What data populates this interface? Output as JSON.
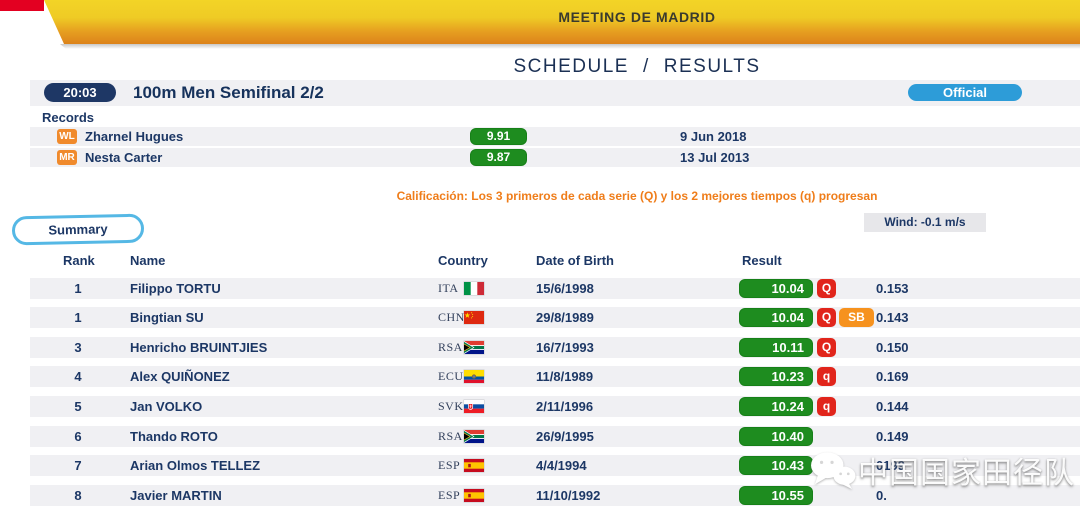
{
  "banner": {
    "title": "MEETING DE MADRID"
  },
  "nav": {
    "schedule": "SCHEDULE",
    "separator": "/",
    "results": "RESULTS"
  },
  "event": {
    "time": "20:03",
    "title": "100m Men Semifinal 2/2",
    "status": "Official"
  },
  "records": {
    "label": "Records",
    "rows": [
      {
        "badge": "WL",
        "name": "Zharnel Hugues",
        "mark": "9.91",
        "date": "9 Jun 2018"
      },
      {
        "badge": "MR",
        "name": "Nesta Carter",
        "mark": "9.87",
        "date": "13 Jul 2013"
      }
    ]
  },
  "qualification": "Calificación: Los 3 primeros de cada serie (Q) y los 2 mejores tiempos (q) progresan",
  "wind": "Wind: -0.1 m/s",
  "tab": "Summary",
  "results_table": {
    "columns": [
      "Rank",
      "Name",
      "Country",
      "Date of Birth",
      "Result"
    ],
    "rows": [
      {
        "rank": "1",
        "name": "Filippo TORTU",
        "country": "ITA",
        "flag": "ita",
        "dob": "15/6/1998",
        "result": "10.04",
        "qual": "Q",
        "note": "",
        "reaction": "0.153"
      },
      {
        "rank": "1",
        "name": "Bingtian SU",
        "country": "CHN",
        "flag": "chn",
        "dob": "29/8/1989",
        "result": "10.04",
        "qual": "Q",
        "note": "SB",
        "reaction": "0.143"
      },
      {
        "rank": "3",
        "name": "Henricho BRUINTJIES",
        "country": "RSA",
        "flag": "rsa",
        "dob": "16/7/1993",
        "result": "10.11",
        "qual": "Q",
        "note": "",
        "reaction": "0.150"
      },
      {
        "rank": "4",
        "name": "Alex QUIÑONEZ",
        "country": "ECU",
        "flag": "ecu",
        "dob": "11/8/1989",
        "result": "10.23",
        "qual": "q",
        "note": "",
        "reaction": "0.169"
      },
      {
        "rank": "5",
        "name": "Jan VOLKO",
        "country": "SVK",
        "flag": "svk",
        "dob": "2/11/1996",
        "result": "10.24",
        "qual": "q",
        "note": "",
        "reaction": "0.144"
      },
      {
        "rank": "6",
        "name": "Thando ROTO",
        "country": "RSA",
        "flag": "rsa",
        "dob": "26/9/1995",
        "result": "10.40",
        "qual": "",
        "note": "",
        "reaction": "0.149"
      },
      {
        "rank": "7",
        "name": "Arian Olmos TELLEZ",
        "country": "ESP",
        "flag": "esp",
        "dob": "4/4/1994",
        "result": "10.43",
        "qual": "",
        "note": "",
        "reaction": "0199"
      },
      {
        "rank": "8",
        "name": "Javier MARTIN",
        "country": "ESP",
        "flag": "esp",
        "dob": "11/10/1992",
        "result": "10.55",
        "qual": "",
        "note": "",
        "reaction": "0."
      }
    ]
  },
  "watermark": {
    "text": "中国国家田径队",
    "icon": "wechat-icon"
  },
  "colors": {
    "banner_yellow": "#F3D426",
    "banner_orange": "#DC831B",
    "corner_red": "#E30021",
    "navy": "#1C3765",
    "result_green": "#1E8C1F",
    "qual_red": "#E1251B",
    "badge_orange": "#F08A2C",
    "sb_orange": "#F6921E",
    "official_blue": "#2D9CD8",
    "tab_blue": "#55B8E5",
    "row_gray": "#F0F0F3",
    "qual_text_orange": "#EF7D1A"
  }
}
